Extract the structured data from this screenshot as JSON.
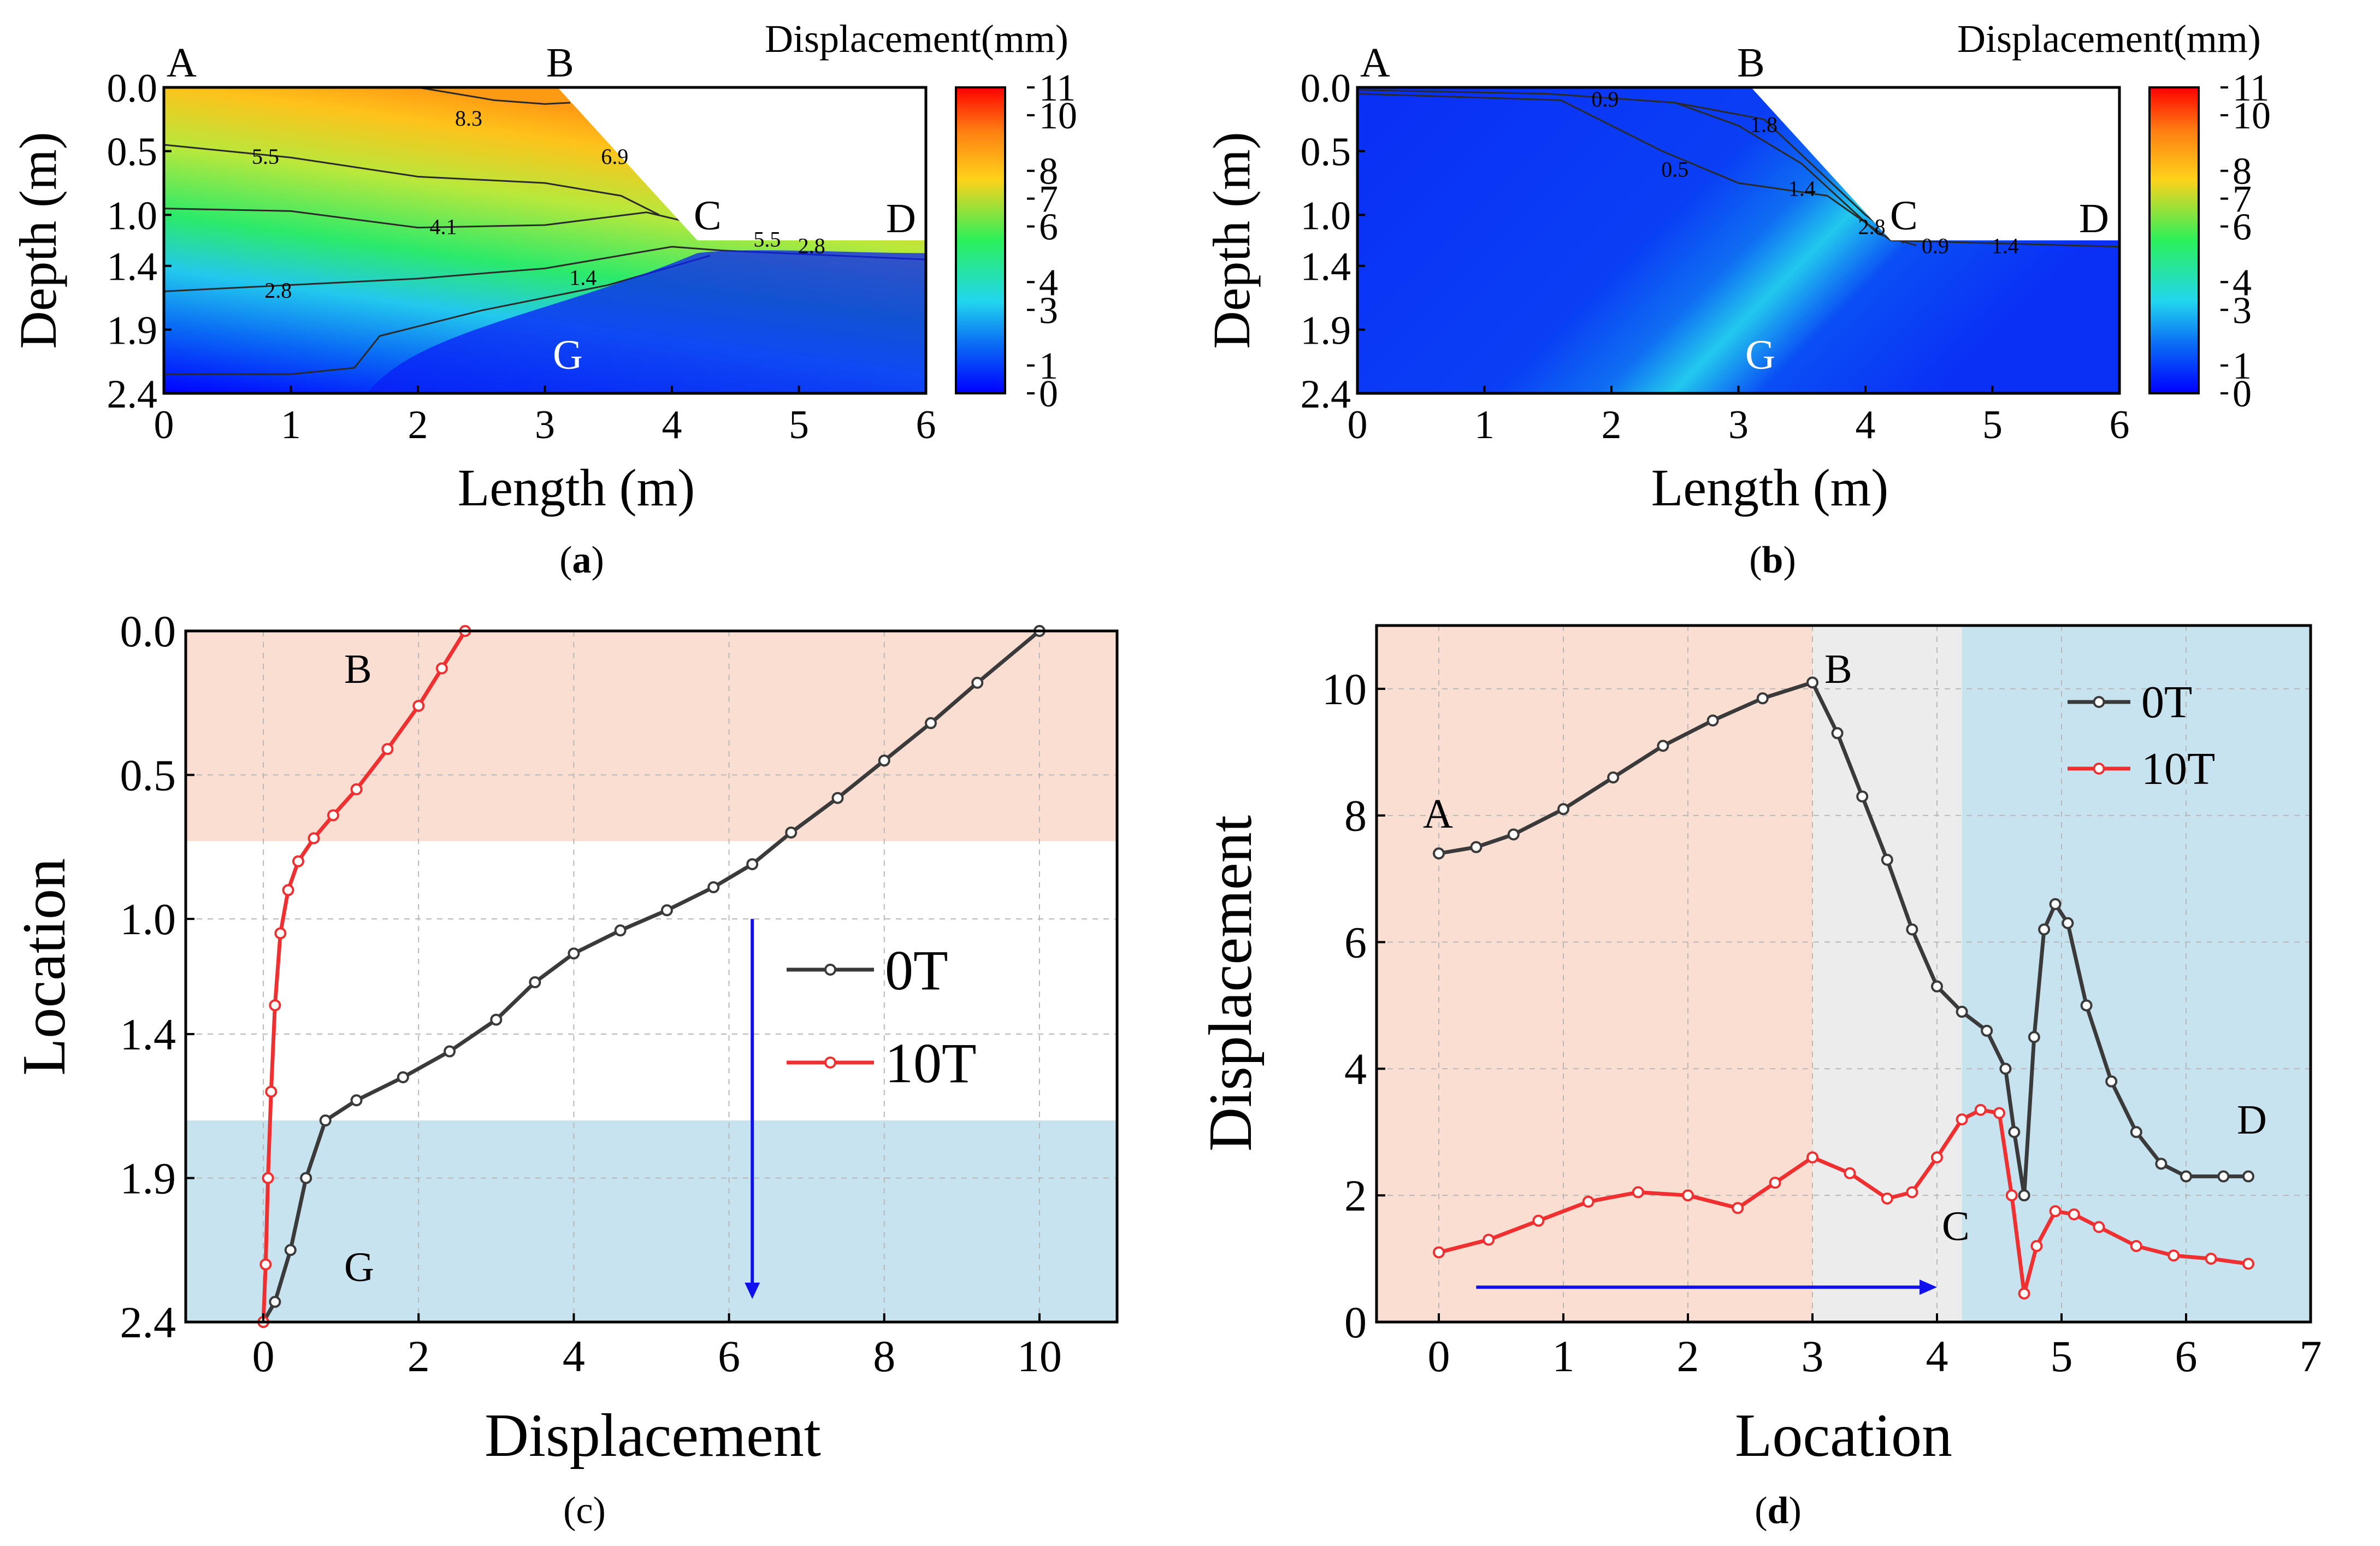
{
  "figure": {
    "captions": [
      "(a)",
      "(b)",
      "(c)",
      "(d)"
    ],
    "caption_letters": [
      "a",
      "b",
      "c",
      "d"
    ]
  },
  "colors": {
    "line_0T": "#3a3a3a",
    "line_10T": "#f03030",
    "band_top": "#fbded2",
    "band_mid": "#ececec",
    "band_bottom": "#c7e3ef",
    "arrow": "#1010ee",
    "colormap": [
      "#0000ff",
      "#0a6cf5",
      "#22d6ee",
      "#2bf05a",
      "#ffd21a",
      "#ff7d12",
      "#ff0000"
    ]
  },
  "chart_data": [
    {
      "id": "a",
      "type": "heatmap",
      "title": "Displacement(mm)",
      "xlabel": "Length (m)",
      "ylabel": "Depth (m)",
      "xlim": [
        0,
        6
      ],
      "ylim": [
        2.4,
        0.0
      ],
      "xticks": [
        "0",
        "1",
        "2",
        "3",
        "4",
        "5",
        "6"
      ],
      "yticks": [
        "0.0",
        "0.5",
        "1.0",
        "1.4",
        "1.9",
        "2.4"
      ],
      "colorbar": {
        "min": 0,
        "max": 11,
        "ticks": [
          "11",
          "10",
          "8",
          "7",
          "6",
          "4",
          "3",
          "1",
          "0"
        ]
      },
      "points": {
        "A": "A",
        "B": "B",
        "C": "C",
        "D": "D",
        "G": "G"
      },
      "contour_labels": [
        "8.3",
        "6.9",
        "5.5",
        "4.1",
        "2.8",
        "1.4",
        "5.5",
        "2.8"
      ]
    },
    {
      "id": "b",
      "type": "heatmap",
      "title": "Displacement(mm)",
      "xlabel": "Length (m)",
      "ylabel": "Depth (m)",
      "xlim": [
        0,
        6
      ],
      "ylim": [
        2.4,
        0.0
      ],
      "xticks": [
        "0",
        "1",
        "2",
        "3",
        "4",
        "5",
        "6"
      ],
      "yticks": [
        "0.0",
        "0.5",
        "1.0",
        "1.4",
        "1.9",
        "2.4"
      ],
      "colorbar": {
        "min": 0,
        "max": 11,
        "ticks": [
          "11",
          "10",
          "8",
          "7",
          "6",
          "4",
          "3",
          "1",
          "0"
        ]
      },
      "points": {
        "A": "A",
        "B": "B",
        "C": "C",
        "D": "D",
        "G": "G"
      },
      "contour_labels": [
        "0.9",
        "1.8",
        "0.5",
        "1.4",
        "2.8",
        "0.9",
        "1.4"
      ]
    },
    {
      "id": "c",
      "type": "line",
      "xlabel": "Displacement",
      "ylabel": "Location",
      "xlim": [
        -1,
        11
      ],
      "ylim": [
        2.4,
        0.0
      ],
      "xticks": [
        "0",
        "2",
        "4",
        "6",
        "8",
        "10"
      ],
      "yticks": [
        "0.0",
        "0.5",
        "1.0",
        "1.4",
        "1.9",
        "2.4"
      ],
      "bands": [
        [
          0.0,
          0.73
        ],
        [
          1.7,
          2.4
        ]
      ],
      "points": {
        "B": "B",
        "G": "G"
      },
      "series": [
        {
          "name": "0T",
          "x": [
            0.0,
            0.15,
            0.35,
            0.55,
            0.8,
            1.2,
            1.8,
            2.4,
            3.0,
            3.5,
            4.0,
            4.6,
            5.2,
            5.8,
            6.3,
            6.8,
            7.4,
            8.0,
            8.6,
            9.2,
            10.0
          ],
          "y": [
            2.4,
            2.33,
            2.15,
            1.9,
            1.7,
            1.63,
            1.55,
            1.46,
            1.35,
            1.22,
            1.12,
            1.04,
            0.97,
            0.89,
            0.81,
            0.7,
            0.58,
            0.45,
            0.32,
            0.18,
            0.0
          ]
        },
        {
          "name": "10T",
          "x": [
            0.0,
            0.03,
            0.06,
            0.1,
            0.15,
            0.22,
            0.32,
            0.45,
            0.65,
            0.9,
            1.2,
            1.6,
            2.0,
            2.3,
            2.6
          ],
          "y": [
            2.4,
            2.2,
            1.9,
            1.6,
            1.3,
            1.05,
            0.9,
            0.8,
            0.72,
            0.64,
            0.55,
            0.41,
            0.26,
            0.13,
            0.0
          ]
        }
      ]
    },
    {
      "id": "d",
      "type": "line",
      "xlabel": "Location",
      "ylabel": "Displacement",
      "xlim": [
        -0.5,
        7
      ],
      "ylim": [
        0,
        11
      ],
      "xticks": [
        "0",
        "1",
        "2",
        "3",
        "4",
        "5",
        "6",
        "7"
      ],
      "yticks": [
        "0",
        "2",
        "4",
        "6",
        "8",
        "10"
      ],
      "bands": [
        [
          -0.5,
          3.0
        ],
        [
          3.0,
          4.2
        ],
        [
          4.2,
          7.0
        ]
      ],
      "points": {
        "A": "A",
        "B": "B",
        "C": "C",
        "D": "D"
      },
      "series": [
        {
          "name": "0T",
          "x": [
            0.0,
            0.3,
            0.6,
            1.0,
            1.4,
            1.8,
            2.2,
            2.6,
            3.0,
            3.2,
            3.4,
            3.6,
            3.8,
            4.0,
            4.2,
            4.4,
            4.55,
            4.62,
            4.7,
            4.78,
            4.86,
            4.95,
            5.05,
            5.2,
            5.4,
            5.6,
            5.8,
            6.0,
            6.3,
            6.5
          ],
          "y": [
            7.4,
            7.5,
            7.7,
            8.1,
            8.6,
            9.1,
            9.5,
            9.85,
            10.1,
            9.3,
            8.3,
            7.3,
            6.2,
            5.3,
            4.9,
            4.6,
            4.0,
            3.0,
            2.0,
            4.5,
            6.2,
            6.6,
            6.3,
            5.0,
            3.8,
            3.0,
            2.5,
            2.3,
            2.3,
            2.3
          ]
        },
        {
          "name": "10T",
          "x": [
            0.0,
            0.4,
            0.8,
            1.2,
            1.6,
            2.0,
            2.4,
            2.7,
            3.0,
            3.3,
            3.6,
            3.8,
            4.0,
            4.2,
            4.35,
            4.5,
            4.6,
            4.7,
            4.8,
            4.95,
            5.1,
            5.3,
            5.6,
            5.9,
            6.2,
            6.5
          ],
          "y": [
            1.1,
            1.3,
            1.6,
            1.9,
            2.05,
            2.0,
            1.8,
            2.2,
            2.6,
            2.35,
            1.95,
            2.05,
            2.6,
            3.2,
            3.35,
            3.3,
            2.0,
            0.45,
            1.2,
            1.75,
            1.7,
            1.5,
            1.2,
            1.05,
            1.0,
            0.92
          ]
        }
      ]
    }
  ]
}
